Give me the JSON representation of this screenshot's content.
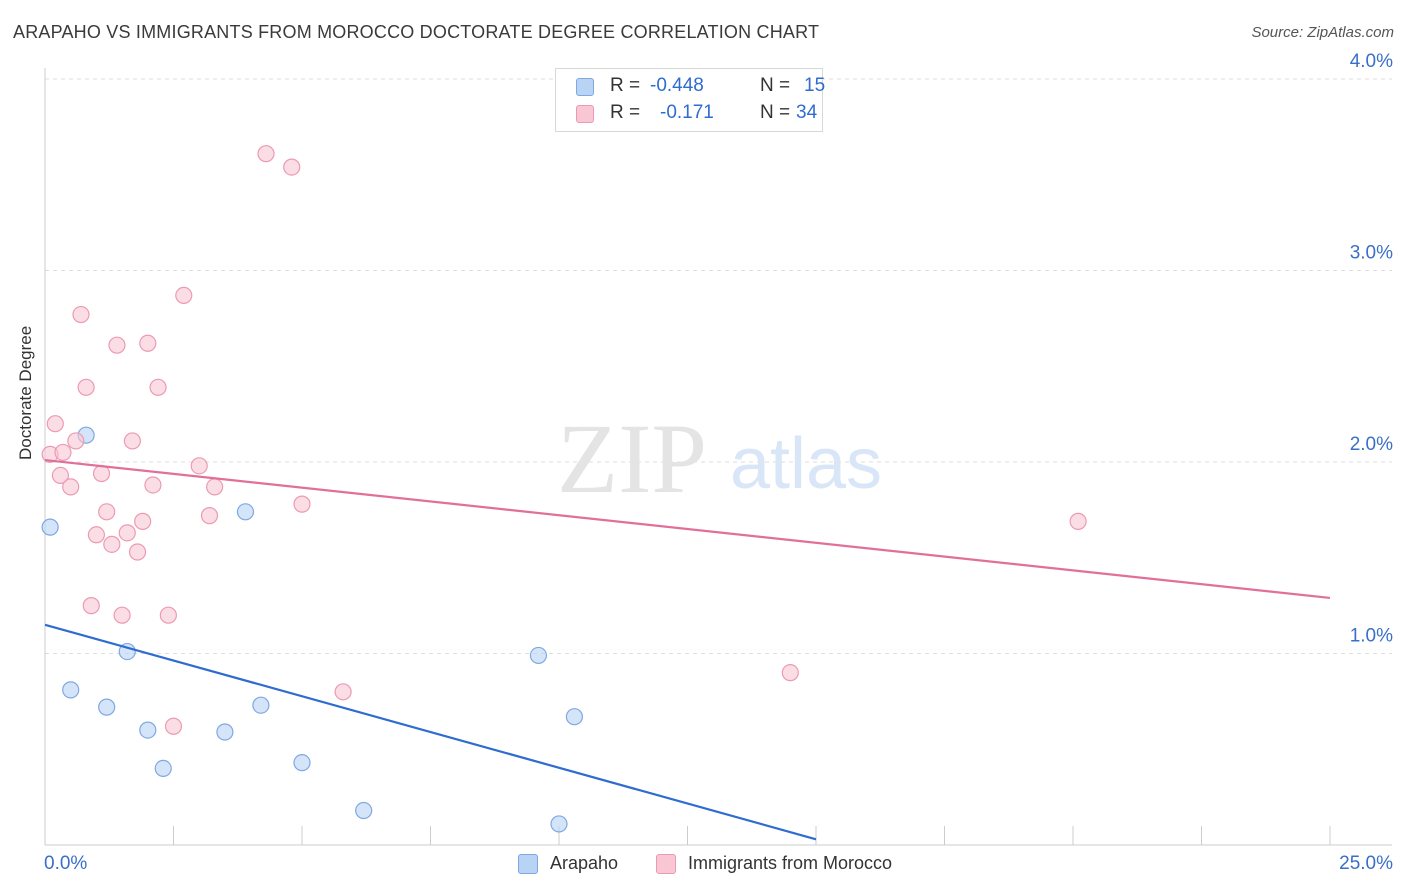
{
  "title": "ARAPAHO VS IMMIGRANTS FROM MOROCCO DOCTORATE DEGREE CORRELATION CHART",
  "source": "Source: ZipAtlas.com",
  "watermark": {
    "zip": "ZIP",
    "atlas": "atlas"
  },
  "colors": {
    "arapaho_fill": "#b9d3f5",
    "arapaho_stroke": "#7fa8e2",
    "arapaho_line": "#2f6ccf",
    "morocco_fill": "#f9c6d4",
    "morocco_stroke": "#ec9ab2",
    "morocco_line": "#e0709a",
    "tick_text": "#3a6fc7",
    "grid": "#dddddd"
  },
  "stats": {
    "arapaho": {
      "r_label": "R =",
      "r_value": "-0.448",
      "n_label": "N =",
      "n_value": "15"
    },
    "morocco": {
      "r_label": "R =",
      "r_value": "-0.171",
      "n_label": "N =",
      "n_value": "34"
    }
  },
  "legend": {
    "arapaho": "Arapaho",
    "morocco": "Immigrants from Morocco"
  },
  "chart_data": {
    "type": "scatter",
    "title": "ARAPAHO VS IMMIGRANTS FROM MOROCCO DOCTORATE DEGREE CORRELATION CHART",
    "xlabel": "",
    "ylabel": "Doctorate Degree",
    "xlim": [
      0,
      25
    ],
    "ylim": [
      0,
      4.1
    ],
    "x_tick_labels": [
      "0.0%",
      "25.0%"
    ],
    "y_ticks": [
      1,
      2,
      3,
      4
    ],
    "y_tick_labels": [
      "1.0%",
      "2.0%",
      "3.0%",
      "4.0%"
    ],
    "grid": true,
    "legend_position": "bottom-center",
    "series": [
      {
        "name": "Arapaho",
        "points": [
          [
            0.1,
            1.66
          ],
          [
            0.5,
            0.81
          ],
          [
            0.8,
            2.14
          ],
          [
            1.2,
            0.72
          ],
          [
            1.6,
            1.01
          ],
          [
            2.0,
            0.6
          ],
          [
            2.3,
            0.4
          ],
          [
            3.5,
            0.59
          ],
          [
            3.9,
            1.74
          ],
          [
            4.2,
            0.73
          ],
          [
            5.0,
            0.43
          ],
          [
            6.2,
            0.18
          ],
          [
            9.6,
            0.99
          ],
          [
            10.0,
            0.11
          ],
          [
            10.3,
            0.67
          ]
        ],
        "trend": {
          "x": [
            0,
            15
          ],
          "y": [
            1.15,
            0.03
          ]
        }
      },
      {
        "name": "Immigrants from Morocco",
        "points": [
          [
            0.1,
            2.04
          ],
          [
            0.2,
            2.2
          ],
          [
            0.3,
            1.93
          ],
          [
            0.35,
            2.05
          ],
          [
            0.5,
            1.87
          ],
          [
            0.6,
            2.11
          ],
          [
            0.7,
            2.77
          ],
          [
            0.8,
            2.39
          ],
          [
            0.9,
            1.25
          ],
          [
            1.0,
            1.62
          ],
          [
            1.1,
            1.94
          ],
          [
            1.2,
            1.74
          ],
          [
            1.3,
            1.57
          ],
          [
            1.4,
            2.61
          ],
          [
            1.5,
            1.2
          ],
          [
            1.6,
            1.63
          ],
          [
            1.7,
            2.11
          ],
          [
            1.8,
            1.53
          ],
          [
            1.9,
            1.69
          ],
          [
            2.0,
            2.62
          ],
          [
            2.1,
            1.88
          ],
          [
            2.2,
            2.39
          ],
          [
            2.4,
            1.2
          ],
          [
            2.5,
            0.62
          ],
          [
            2.7,
            2.87
          ],
          [
            3.0,
            1.98
          ],
          [
            3.2,
            1.72
          ],
          [
            3.3,
            1.87
          ],
          [
            4.3,
            3.61
          ],
          [
            4.8,
            3.54
          ],
          [
            5.0,
            1.78
          ],
          [
            5.8,
            0.8
          ],
          [
            14.5,
            0.9
          ],
          [
            20.1,
            1.69
          ]
        ],
        "trend": {
          "x": [
            0,
            25
          ],
          "y": [
            2.01,
            1.29
          ]
        }
      }
    ]
  }
}
